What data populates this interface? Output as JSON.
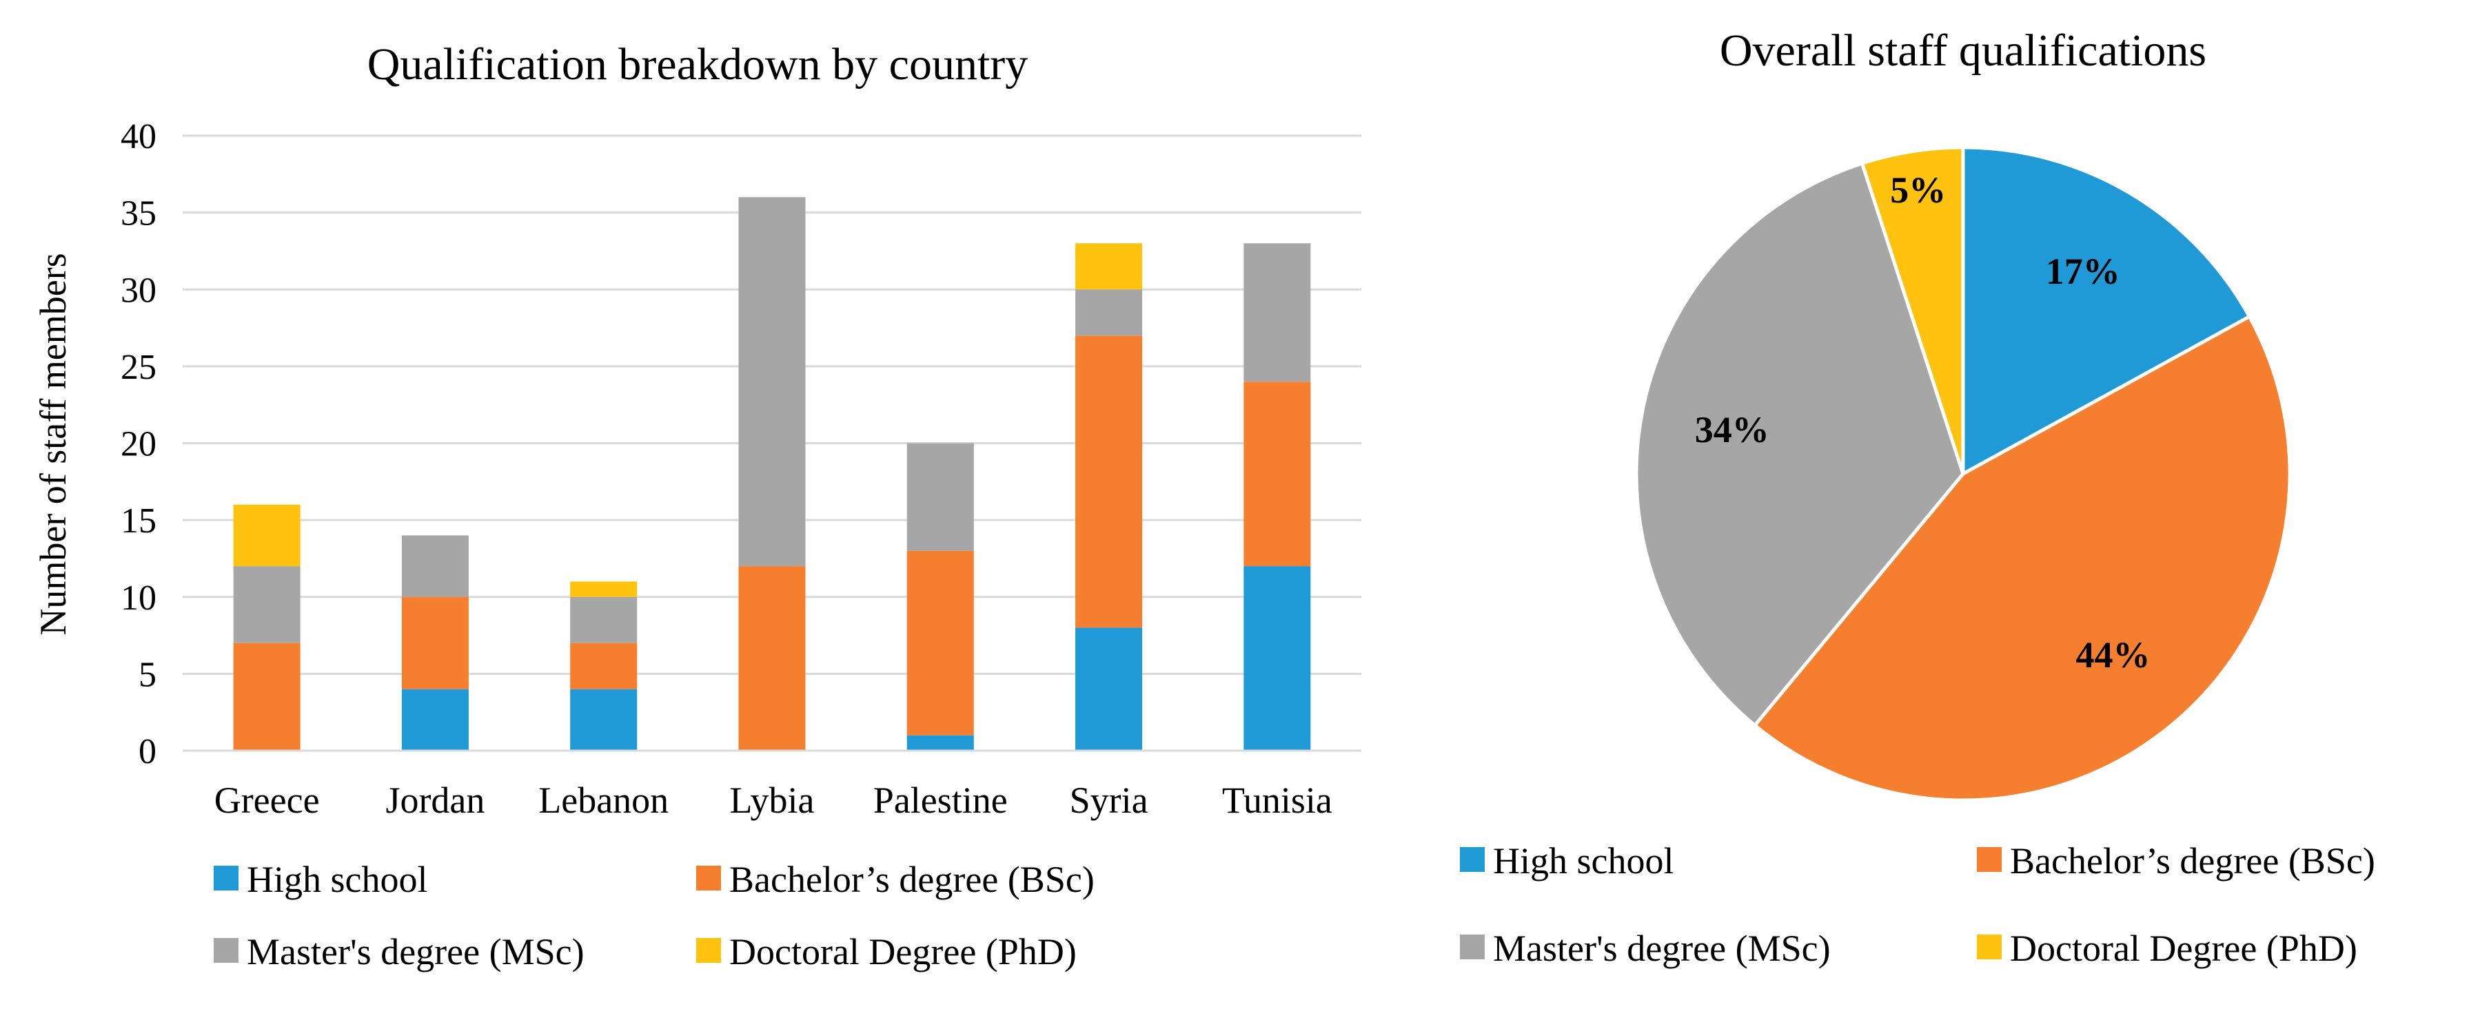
{
  "chart_data": [
    {
      "type": "bar",
      "stacked": true,
      "title": "Qualification breakdown by country",
      "xlabel": "",
      "ylabel": "Number of staff members",
      "ylim": [
        0,
        40
      ],
      "yticks": [
        "0",
        "5",
        "10",
        "15",
        "20",
        "25",
        "30",
        "35",
        "40"
      ],
      "grid": true,
      "legend_position": "bottom",
      "categories": [
        "Greece",
        "Jordan",
        "Lebanon",
        "Lybia",
        "Palestine",
        "Syria",
        "Tunisia"
      ],
      "series": [
        {
          "name": "High school",
          "color": "#1F9AD6",
          "values": [
            0,
            4,
            4,
            0,
            1,
            8,
            12
          ]
        },
        {
          "name": "Bachelor’s degree (BSc)",
          "color": "#F57F2F",
          "values": [
            7,
            6,
            3,
            12,
            12,
            19,
            12
          ]
        },
        {
          "name": "Master's degree (MSc)",
          "color": "#A6A6A6",
          "values": [
            5,
            4,
            3,
            24,
            7,
            3,
            9
          ]
        },
        {
          "name": "Doctoral Degree (PhD)",
          "color": "#FFC20E",
          "values": [
            4,
            0,
            1,
            0,
            0,
            3,
            0
          ]
        }
      ]
    },
    {
      "type": "pie",
      "title": "Overall staff qualifications",
      "legend_position": "bottom",
      "slices": [
        {
          "name": "High school",
          "value": 17,
          "label": "17%",
          "color": "#1F9AD6"
        },
        {
          "name": "Bachelor’s degree (BSc)",
          "value": 44,
          "label": "44%",
          "color": "#F57F2F"
        },
        {
          "name": "Master's degree (MSc)",
          "value": 34,
          "label": "34%",
          "color": "#A6A6A6"
        },
        {
          "name": "Doctoral Degree (PhD)",
          "value": 5,
          "label": "5%",
          "color": "#FFC20E"
        }
      ]
    }
  ]
}
